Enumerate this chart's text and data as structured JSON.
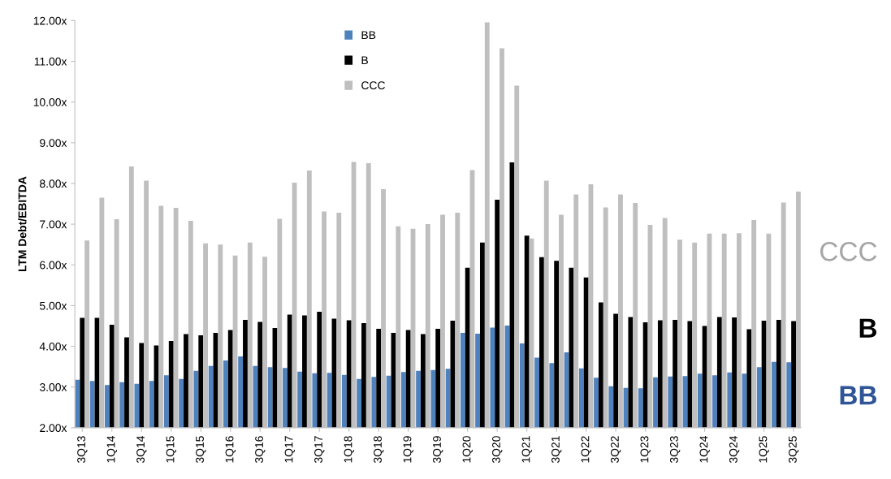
{
  "chart_data": {
    "type": "bar",
    "ylabel": "LTM Debt/EBITDA",
    "categories": [
      "3Q13",
      null,
      "1Q14",
      null,
      "3Q14",
      null,
      "1Q15",
      null,
      "3Q15",
      null,
      "1Q16",
      null,
      "3Q16",
      null,
      "1Q17",
      null,
      "3Q17",
      null,
      "1Q18",
      null,
      "3Q18",
      null,
      "1Q19",
      null,
      "3Q19",
      null,
      "1Q20",
      null,
      "3Q20",
      null,
      "1Q21",
      null,
      "3Q21",
      null,
      "1Q22",
      null,
      "3Q22",
      null,
      "1Q23",
      null,
      "3Q23",
      null,
      "1Q24",
      null,
      "3Q24",
      null,
      "1Q25",
      null,
      "3Q25"
    ],
    "series": [
      {
        "name": "BB",
        "color": "#4f81bd",
        "values": [
          3.18,
          3.15,
          3.05,
          3.12,
          3.08,
          3.15,
          3.29,
          3.2,
          3.4,
          3.52,
          3.65,
          3.75,
          3.52,
          3.49,
          3.47,
          3.38,
          3.34,
          3.35,
          3.3,
          3.2,
          3.25,
          3.28,
          3.37,
          3.4,
          3.42,
          3.45,
          4.33,
          4.31,
          4.46,
          4.51,
          4.07,
          3.72,
          3.59,
          3.85,
          3.46,
          3.23,
          3.02,
          2.98,
          2.97,
          3.24,
          3.26,
          3.27,
          3.33,
          3.29,
          3.36,
          3.33,
          3.49,
          3.62,
          3.61
        ]
      },
      {
        "name": "B",
        "color": "#000000",
        "values": [
          4.7,
          4.7,
          4.53,
          4.22,
          4.08,
          4.02,
          4.13,
          4.3,
          4.27,
          4.33,
          4.4,
          4.65,
          4.6,
          4.45,
          4.78,
          4.76,
          4.85,
          4.68,
          4.64,
          4.57,
          4.43,
          4.33,
          4.4,
          4.3,
          4.43,
          4.63,
          5.93,
          6.55,
          7.6,
          8.52,
          6.72,
          6.19,
          6.1,
          5.93,
          5.69,
          5.08,
          4.8,
          4.72,
          4.59,
          4.64,
          4.65,
          4.62,
          4.5,
          4.72,
          4.71,
          4.42,
          4.63,
          4.65,
          4.62
        ]
      },
      {
        "name": "CCC",
        "color": "#bfbfbf",
        "values": [
          6.6,
          7.65,
          7.12,
          8.42,
          8.07,
          7.45,
          7.4,
          7.08,
          6.53,
          6.5,
          6.23,
          6.55,
          6.2,
          7.13,
          8.02,
          8.32,
          7.31,
          7.28,
          8.53,
          8.5,
          7.86,
          6.95,
          6.89,
          7.0,
          7.23,
          7.28,
          8.33,
          11.96,
          11.32,
          10.4,
          6.65,
          8.07,
          7.23,
          7.73,
          7.98,
          7.41,
          7.73,
          7.52,
          6.98,
          7.15,
          6.62,
          6.55,
          6.77,
          6.77,
          6.78,
          7.1,
          6.77,
          7.53,
          7.8
        ]
      }
    ],
    "annotations": [
      "CCC",
      "B",
      "BB"
    ],
    "ylim": [
      2,
      12
    ],
    "yticks": [
      {
        "value": 2,
        "label": "2.00x"
      },
      {
        "value": 3,
        "label": "3.00x"
      },
      {
        "value": 4,
        "label": "4.00x"
      },
      {
        "value": 5,
        "label": "5.00x"
      },
      {
        "value": 6,
        "label": "6.00x"
      },
      {
        "value": 7,
        "label": "7.00x"
      },
      {
        "value": 8,
        "label": "8.00x"
      },
      {
        "value": 9,
        "label": "9.00x"
      },
      {
        "value": 10,
        "label": "10.00x"
      },
      {
        "value": 11,
        "label": "11.00x"
      },
      {
        "value": 12,
        "label": "12.00x"
      }
    ],
    "grid": false,
    "legend": "top"
  }
}
